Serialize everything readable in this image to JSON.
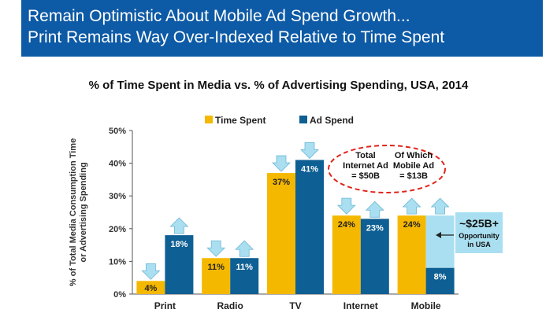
{
  "header": {
    "line1": "Remain Optimistic About Mobile Ad Spend Growth...",
    "line2": "Print Remains Way Over-Indexed Relative to Time Spent"
  },
  "colors": {
    "banner": "#0d5aa6",
    "time_spent": "#f5b800",
    "ad_spend": "#0e5f93",
    "opportunity": "#a9dff0",
    "arrow": "#a9dff0",
    "callout_border": "#e0241b"
  },
  "chart_data": {
    "type": "bar",
    "title": "% of Time Spent in Media vs. % of Advertising Spending, USA, 2014",
    "ylabel": "% of Total Media Consumption Time or Advertising Spending",
    "ylabel_lines": [
      "% of Total Media Consumption Time",
      "or Advertising Spending"
    ],
    "ylim": [
      0,
      50
    ],
    "yticks": [
      "0%",
      "10%",
      "20%",
      "30%",
      "40%",
      "50%"
    ],
    "categories": [
      "Print",
      "Radio",
      "TV",
      "Internet",
      "Mobile"
    ],
    "series": [
      {
        "name": "Time Spent",
        "values": [
          4,
          11,
          37,
          24,
          24
        ],
        "labels": [
          "4%",
          "11%",
          "37%",
          "24%",
          "24%"
        ]
      },
      {
        "name": "Ad Spend",
        "values": [
          18,
          11,
          41,
          23,
          8
        ],
        "labels": [
          "18%",
          "11%",
          "41%",
          "23%",
          "8%"
        ]
      }
    ],
    "trend_arrows": {
      "Time Spent": [
        "down",
        "down",
        "down",
        "down",
        "up"
      ],
      "Ad Spend": [
        "up",
        "up",
        "down",
        "up",
        "up"
      ]
    },
    "opportunity": {
      "category": "Mobile",
      "from": 8,
      "to": 24
    },
    "legend_position": "top",
    "grid": false
  },
  "callout": {
    "left_lines": [
      "Total",
      "Internet Ad",
      "= $50B"
    ],
    "right_lines": [
      "Of Which",
      "Mobile Ad",
      "= $13B"
    ]
  },
  "opportunity_box": {
    "big": "~$25B+",
    "lines": [
      "Opportunity",
      "in USA"
    ]
  }
}
